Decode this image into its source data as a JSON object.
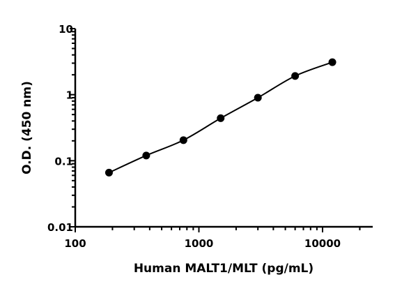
{
  "chart_data": {
    "type": "scatter",
    "title": "",
    "xlabel": "Human MALT1/MLT (pg/mL)",
    "ylabel": "O.D. (450 nm)",
    "x_scale": "log",
    "y_scale": "log",
    "xlim": [
      100,
      25000
    ],
    "ylim": [
      0.01,
      10
    ],
    "x_ticks": [
      "100",
      "1000",
      "10000"
    ],
    "y_ticks": [
      "0.01",
      "0.1",
      "1",
      "10"
    ],
    "grid": false,
    "legend": "none",
    "fit_line": true,
    "color": "#000000",
    "series": [
      {
        "x": [
          187.5,
          375,
          750,
          1500,
          3000,
          6000,
          12000
        ],
        "y": [
          0.066,
          0.12,
          0.205,
          0.44,
          0.9,
          1.92,
          3.1
        ]
      }
    ]
  }
}
